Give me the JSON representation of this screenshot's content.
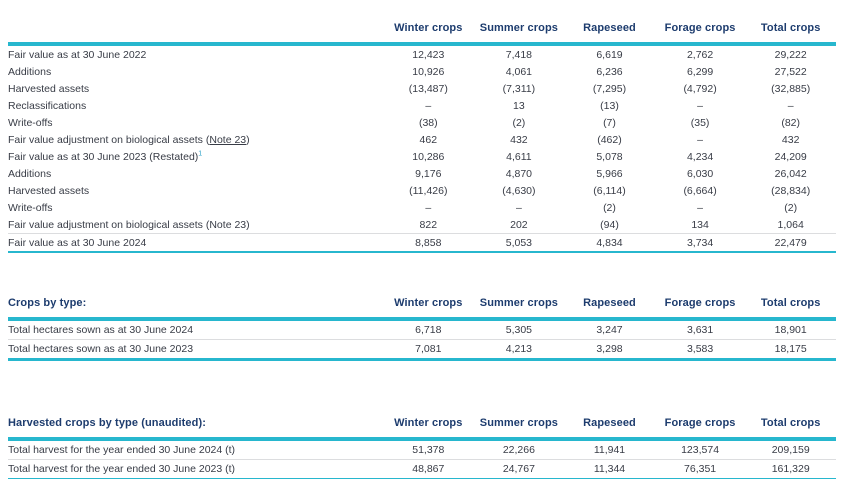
{
  "colors": {
    "accent_teal": "#27b7ce",
    "header_navy": "#1d3c6e",
    "body_text": "#383c46",
    "row_separator": "#dcdddf",
    "footnote_teal": "#2fa3c9"
  },
  "column_headers": [
    "Winter crops",
    "Summer crops",
    "Rapeseed",
    "Forage crops",
    "Total crops"
  ],
  "note_link_label": "Note 23",
  "footnote_marker": "1",
  "tables": [
    {
      "id": "fair-value-table",
      "title": "",
      "rows": [
        {
          "label": "Fair value as at 30 June 2022",
          "values": [
            "12,423",
            "7,418",
            "6,619",
            "2,762",
            "29,222"
          ]
        },
        {
          "label": "Additions",
          "values": [
            "10,926",
            "4,061",
            "6,236",
            "6,299",
            "27,522"
          ]
        },
        {
          "label": "Harvested assets",
          "values": [
            "(13,487)",
            "(7,311)",
            "(7,295)",
            "(4,792)",
            "(32,885)"
          ]
        },
        {
          "label": "Reclassifications",
          "values": [
            "–",
            "13",
            "(13)",
            "–",
            "–"
          ]
        },
        {
          "label": "Write-offs",
          "values": [
            "(38)",
            "(2)",
            "(7)",
            "(35)",
            "(82)"
          ]
        },
        {
          "label": "Fair value adjustment on biological assets (Note 23)",
          "link_text": "Note 23",
          "values": [
            "462",
            "432",
            "(462)",
            "–",
            "432"
          ]
        },
        {
          "label": "Fair value as at 30 June 2023 (Restated)",
          "sup": "1",
          "values": [
            "10,286",
            "4,611",
            "5,078",
            "4,234",
            "24,209"
          ]
        },
        {
          "label": "Additions",
          "values": [
            "9,176",
            "4,870",
            "5,966",
            "6,030",
            "26,042"
          ]
        },
        {
          "label": "Harvested assets",
          "values": [
            "(11,426)",
            "(4,630)",
            "(6,114)",
            "(6,664)",
            "(28,834)"
          ]
        },
        {
          "label": "Write-offs",
          "values": [
            "–",
            "–",
            "(2)",
            "–",
            "(2)"
          ]
        },
        {
          "label": "Fair value adjustment on biological assets (Note 23)",
          "values": [
            "822",
            "202",
            "(94)",
            "134",
            "1,064"
          ]
        },
        {
          "label": "Fair value as at 30 June 2024",
          "separator_above": true,
          "values": [
            "8,858",
            "5,053",
            "4,834",
            "3,734",
            "22,479"
          ]
        }
      ]
    },
    {
      "id": "crops-by-type-table",
      "title": "Crops by type:",
      "rows": [
        {
          "label": "Total hectares sown as at 30 June 2024",
          "values": [
            "6,718",
            "5,305",
            "3,247",
            "3,631",
            "18,901"
          ]
        },
        {
          "label": "Total hectares sown as at 30 June 2023",
          "values": [
            "7,081",
            "4,213",
            "3,298",
            "3,583",
            "18,175"
          ]
        }
      ]
    },
    {
      "id": "harvested-crops-table",
      "title": "Harvested crops by type (unaudited):",
      "rows": [
        {
          "label": "Total harvest for the year ended 30 June 2024 (t)",
          "values": [
            "51,378",
            "22,266",
            "11,941",
            "123,574",
            "209,159"
          ]
        },
        {
          "label": "Total harvest for the year ended 30 June 2023 (t)",
          "values": [
            "48,867",
            "24,767",
            "11,344",
            "76,351",
            "161,329"
          ]
        }
      ]
    }
  ]
}
